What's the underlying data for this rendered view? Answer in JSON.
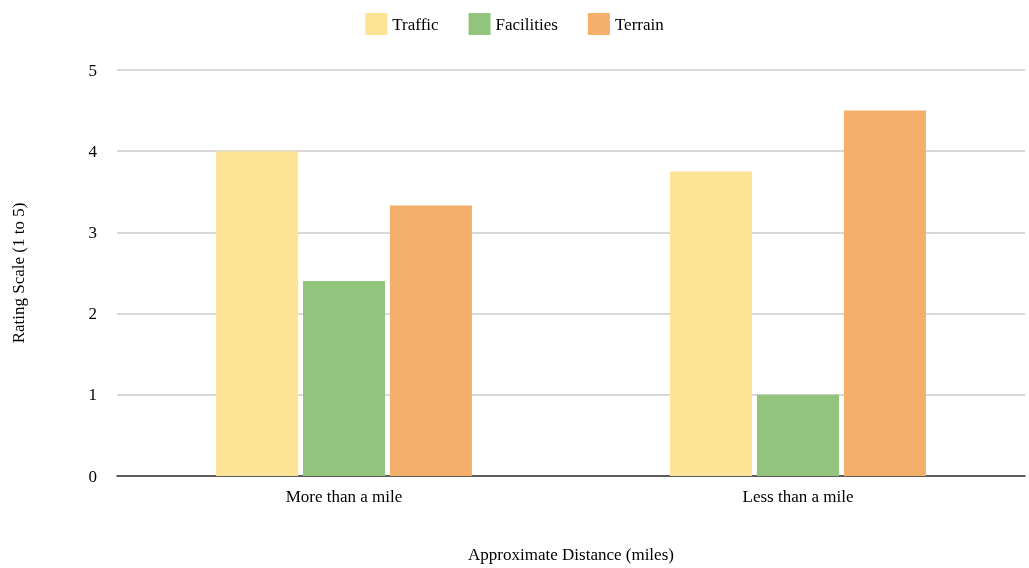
{
  "chart_data": {
    "type": "bar",
    "xlabel": "Approximate Distance (miles)",
    "ylabel": "Rating Scale (1 to 5)",
    "categories": [
      "More than a mile",
      "Less than a mile"
    ],
    "series": [
      {
        "name": "Traffic",
        "color": "#fde396",
        "values": [
          4,
          3.75
        ]
      },
      {
        "name": "Facilities",
        "color": "#93c47d",
        "values": [
          2.4,
          1
        ]
      },
      {
        "name": "Terrain",
        "color": "#f4b06a",
        "values": [
          3.33,
          4.5
        ]
      }
    ],
    "ylim": [
      0,
      5
    ],
    "yticks": [
      0,
      1,
      2,
      3,
      4,
      5
    ],
    "grid": "y",
    "legend": "top"
  }
}
